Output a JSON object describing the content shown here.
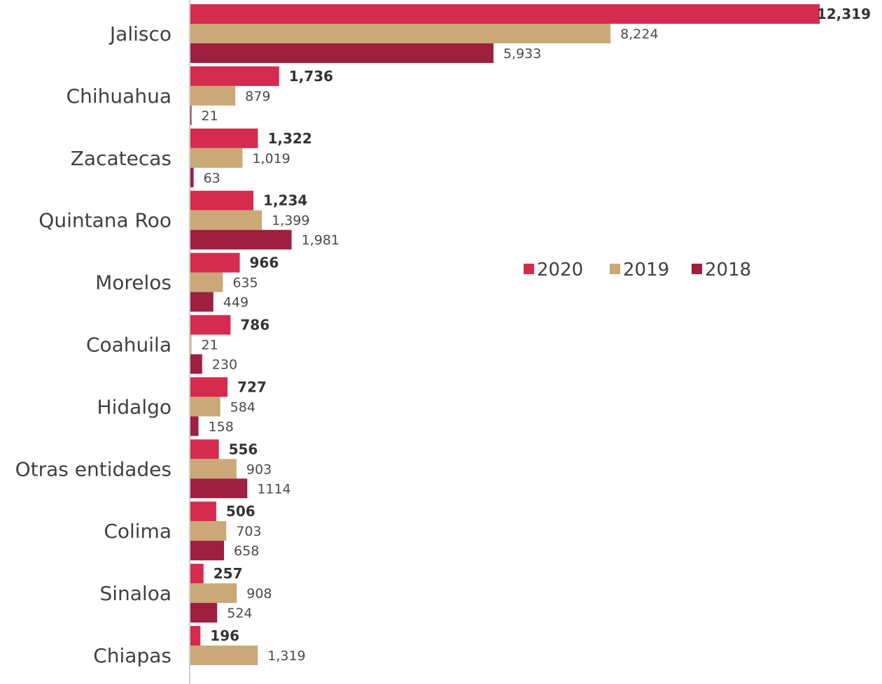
{
  "chart_data": {
    "type": "bar",
    "orientation": "horizontal",
    "title": "",
    "xlabel": "",
    "ylabel": "",
    "categories": [
      "Jalisco",
      "Chihuahua",
      "Zacatecas",
      "Quintana Roo",
      "Morelos",
      "Coahuila",
      "Hidalgo",
      "Otras entidades",
      "Colima",
      "Sinaloa",
      "Chiapas"
    ],
    "series": [
      {
        "name": "2020",
        "color": "#d42b4e",
        "values": [
          12319,
          1736,
          1322,
          1234,
          966,
          786,
          727,
          556,
          506,
          257,
          196
        ],
        "labels": [
          "12,319",
          "1,736",
          "1,322",
          "1,234",
          "966",
          "786",
          "727",
          "556",
          "506",
          "257",
          "196"
        ]
      },
      {
        "name": "2019",
        "color": "#cba878",
        "values": [
          8224,
          879,
          1019,
          1399,
          635,
          21,
          584,
          903,
          703,
          908,
          1319
        ],
        "labels": [
          "8,224",
          "879",
          "1,019",
          "1,399",
          "635",
          "21",
          "584",
          "903",
          "703",
          "908",
          "1,319"
        ]
      },
      {
        "name": "2018",
        "color": "#9e1f3e",
        "values": [
          5933,
          21,
          63,
          1981,
          449,
          230,
          158,
          1114,
          658,
          524,
          null
        ],
        "labels": [
          "5,933",
          "21",
          "63",
          "1,981",
          "449",
          "230",
          "158",
          "1114",
          "658",
          "524",
          ""
        ]
      }
    ],
    "xlim": [
      0,
      12319
    ],
    "grid": false,
    "legend": "center-right"
  }
}
